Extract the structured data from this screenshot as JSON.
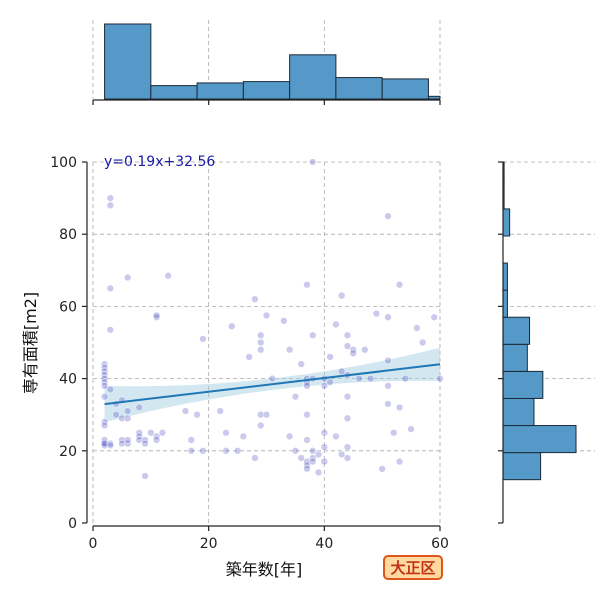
{
  "badge": "大正区",
  "chart_data": {
    "type": "scatter",
    "xlabel": "築年数[年]",
    "ylabel": "専有面積[m2]",
    "xlim": [
      0,
      60
    ],
    "ylim": [
      0,
      100
    ],
    "xticks": [
      0,
      20,
      40,
      60
    ],
    "yticks": [
      0,
      20,
      40,
      60,
      80,
      100
    ],
    "grid": true,
    "equation": "y=0.19x+32.56",
    "regression": {
      "slope": 0.19,
      "intercept": 32.56,
      "x_range": [
        2,
        60
      ]
    },
    "colors": {
      "points": "#4040c0",
      "regression": "#1f77b4",
      "band": "#9ecae1",
      "bars": "#5499c7"
    },
    "points": [
      [
        2,
        44
      ],
      [
        2,
        43
      ],
      [
        2,
        42
      ],
      [
        2,
        41
      ],
      [
        2,
        40
      ],
      [
        2,
        39
      ],
      [
        2,
        38
      ],
      [
        2,
        35
      ],
      [
        2,
        28
      ],
      [
        2,
        27
      ],
      [
        2,
        23
      ],
      [
        2,
        22
      ],
      [
        2,
        21.5
      ],
      [
        2,
        22
      ],
      [
        3,
        90
      ],
      [
        3,
        88
      ],
      [
        3,
        65
      ],
      [
        3,
        53.5
      ],
      [
        3,
        37
      ],
      [
        3,
        22
      ],
      [
        3,
        21.5
      ],
      [
        4,
        33
      ],
      [
        4,
        30
      ],
      [
        5,
        34
      ],
      [
        5,
        29
      ],
      [
        5,
        23
      ],
      [
        5,
        22
      ],
      [
        6,
        68
      ],
      [
        6,
        31
      ],
      [
        6,
        29
      ],
      [
        6,
        22
      ],
      [
        6,
        23
      ],
      [
        8,
        32
      ],
      [
        8,
        25
      ],
      [
        8,
        24
      ],
      [
        8,
        23
      ],
      [
        9,
        13
      ],
      [
        9,
        23
      ],
      [
        9,
        22
      ],
      [
        10,
        25
      ],
      [
        11,
        57
      ],
      [
        11,
        57.5
      ],
      [
        11,
        24
      ],
      [
        11,
        23
      ],
      [
        12,
        25
      ],
      [
        13,
        68.5
      ],
      [
        16,
        31
      ],
      [
        17,
        23
      ],
      [
        17,
        20
      ],
      [
        18,
        30
      ],
      [
        19,
        51
      ],
      [
        19,
        20
      ],
      [
        22,
        31
      ],
      [
        23,
        25
      ],
      [
        23,
        20
      ],
      [
        24,
        54.5
      ],
      [
        25,
        20
      ],
      [
        26,
        24
      ],
      [
        27,
        46
      ],
      [
        28,
        62
      ],
      [
        28,
        18
      ],
      [
        29,
        52
      ],
      [
        29,
        50
      ],
      [
        29,
        48
      ],
      [
        29,
        30
      ],
      [
        29,
        27
      ],
      [
        30,
        57.5
      ],
      [
        30,
        30
      ],
      [
        31,
        40
      ],
      [
        33,
        56
      ],
      [
        34,
        48
      ],
      [
        34,
        24
      ],
      [
        35,
        35
      ],
      [
        35,
        20
      ],
      [
        36,
        44
      ],
      [
        36,
        18
      ],
      [
        37,
        66
      ],
      [
        37,
        40
      ],
      [
        37,
        39
      ],
      [
        37,
        38
      ],
      [
        37,
        30
      ],
      [
        37,
        23
      ],
      [
        37,
        17
      ],
      [
        37,
        16
      ],
      [
        37,
        15
      ],
      [
        38,
        100
      ],
      [
        38,
        52
      ],
      [
        38,
        40
      ],
      [
        38,
        20
      ],
      [
        38,
        18
      ],
      [
        38,
        17
      ],
      [
        39,
        19
      ],
      [
        39,
        14
      ],
      [
        40,
        40
      ],
      [
        40,
        38
      ],
      [
        40,
        25
      ],
      [
        40,
        21
      ],
      [
        40,
        17
      ],
      [
        41,
        46
      ],
      [
        41,
        39
      ],
      [
        42,
        55
      ],
      [
        42,
        24
      ],
      [
        43,
        63
      ],
      [
        43,
        42
      ],
      [
        43,
        19
      ],
      [
        44,
        52
      ],
      [
        44,
        49
      ],
      [
        44,
        41
      ],
      [
        44,
        35
      ],
      [
        44,
        29
      ],
      [
        44,
        21
      ],
      [
        44,
        18
      ],
      [
        45,
        48
      ],
      [
        45,
        47
      ],
      [
        46,
        40
      ],
      [
        47,
        48
      ],
      [
        48,
        40
      ],
      [
        49,
        58
      ],
      [
        50,
        15
      ],
      [
        51,
        85
      ],
      [
        51,
        57
      ],
      [
        51,
        45
      ],
      [
        51,
        38
      ],
      [
        51,
        33
      ],
      [
        52,
        25
      ],
      [
        53,
        66
      ],
      [
        53,
        17
      ],
      [
        53,
        32
      ],
      [
        54,
        40
      ],
      [
        55,
        26
      ],
      [
        56,
        54
      ],
      [
        57,
        50
      ],
      [
        59,
        57
      ],
      [
        60,
        40
      ]
    ],
    "marginal_x": {
      "bins": [
        [
          2,
          10,
          56
        ],
        [
          10,
          18,
          10
        ],
        [
          18,
          26,
          12
        ],
        [
          26,
          34,
          13
        ],
        [
          34,
          42,
          33
        ],
        [
          42,
          50,
          16
        ],
        [
          50,
          58,
          15
        ],
        [
          58,
          60,
          2
        ]
      ]
    },
    "marginal_y": {
      "bins": [
        [
          12,
          19.5,
          17
        ],
        [
          19.5,
          27,
          33
        ],
        [
          27,
          34.5,
          14
        ],
        [
          34.5,
          42,
          18
        ],
        [
          42,
          49.5,
          11
        ],
        [
          49.5,
          57,
          12
        ],
        [
          57,
          64.5,
          2
        ],
        [
          64.5,
          72,
          2
        ],
        [
          72,
          79.5,
          0
        ],
        [
          79.5,
          87,
          3
        ],
        [
          87,
          94.5,
          0.5
        ],
        [
          94.5,
          100,
          0.5
        ]
      ]
    }
  }
}
